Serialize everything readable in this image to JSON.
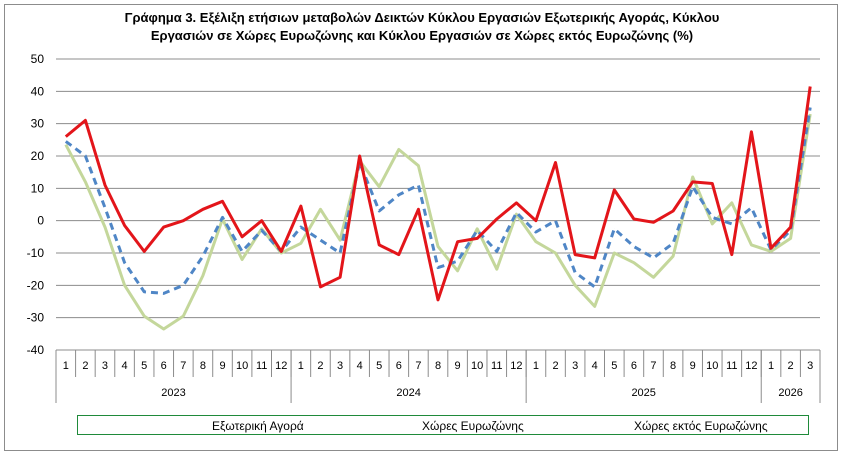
{
  "title_lines": [
    "Γράφημα 3. Εξέλιξη  ετήσιων μεταβολών Δεικτών Κύκλου Εργασιών Εξωτερικής Αγοράς,  Κύκλου",
    "Εργασιών σε Χώρες Ευρωζώνης και Κύκλου Εργασιών σε Χώρες εκτός Ευρωζώνης (%)"
  ],
  "colors": {
    "external": "#4f86c6",
    "eurozone": "#e3151a",
    "non_eurozone": "#c4d79b",
    "grid": "#8c8c8c",
    "legend_border": "#1f8a3a"
  },
  "legend": {
    "external": "Εξωτερική Αγορά",
    "eurozone": "Χώρες Ευρωζώνης",
    "non_eurozone": "Χώρες εκτός Ευρωζώνης"
  },
  "chart_data": {
    "type": "line",
    "title": "Γράφημα 3. Εξέλιξη  ετήσιων μεταβολών Δεικτών Κύκλου Εργασιών Εξωτερικής Αγοράς,  Κύκλου Εργασιών σε Χώρες Ευρωζώνης και Κύκλου Εργασιών σε Χώρες εκτός Ευρωζώνης (%)",
    "ylim": [
      -40,
      50
    ],
    "yticks": [
      "50",
      "40",
      "30",
      "20",
      "10",
      "0",
      "-10",
      "-20",
      "-30",
      "-40"
    ],
    "grid": true,
    "legend_position": "bottom",
    "categories": [
      "1",
      "2",
      "3",
      "4",
      "5",
      "6",
      "7",
      "8",
      "9",
      "10",
      "11",
      "12",
      "1",
      "2",
      "3",
      "4",
      "5",
      "6",
      "7",
      "8",
      "9",
      "10",
      "11",
      "12",
      "1",
      "2",
      "3",
      "4",
      "5",
      "6",
      "7",
      "8",
      "9",
      "10",
      "11",
      "12",
      "1",
      "2",
      "3"
    ],
    "year_groups": [
      {
        "label": "2023",
        "count": 12
      },
      {
        "label": "2024",
        "count": 12
      },
      {
        "label": "2025",
        "count": 12
      },
      {
        "label": "2026",
        "count": 3
      }
    ],
    "series": [
      {
        "name": "Εξωτερική Αγορά",
        "key": "external",
        "style": "dashed",
        "values": [
          24.5,
          20,
          4,
          -13,
          -22,
          -22.5,
          -20,
          -11,
          1,
          -9.5,
          -3,
          -9.5,
          -2,
          -6,
          -10,
          18,
          3,
          8,
          11,
          -14.5,
          -12.5,
          -3,
          -9.5,
          2.5,
          -3.5,
          0,
          -16,
          -20.5,
          -2.5,
          -8,
          -11.5,
          -7,
          10.5,
          1,
          -1,
          4,
          -9,
          -3,
          35
        ]
      },
      {
        "name": "Χώρες Ευρωζώνης",
        "key": "eurozone",
        "style": "solid",
        "values": [
          26,
          31,
          11,
          -1.5,
          -9.5,
          -2,
          0,
          3.5,
          6,
          -5,
          0,
          -9.5,
          4.5,
          -20.5,
          -17.5,
          20,
          -7.5,
          -10.5,
          3.5,
          -24.5,
          -6.5,
          -5.5,
          0.5,
          5.5,
          0,
          18,
          -10.5,
          -11.5,
          9.5,
          0.5,
          -0.5,
          3,
          12,
          11.5,
          -10.5,
          27.5,
          -8.5,
          -2,
          41.5
        ]
      },
      {
        "name": "Χώρες εκτός Ευρωζώνης",
        "key": "non_eurozone",
        "style": "solid",
        "values": [
          23.5,
          12,
          -2,
          -20,
          -29.5,
          -33.5,
          -29.5,
          -17,
          0.5,
          -12,
          -2.5,
          -10,
          -7,
          3.5,
          -6,
          18.5,
          10.5,
          22,
          17,
          -8,
          -15.5,
          -2.5,
          -15,
          2,
          -6.5,
          -10,
          -20,
          -26.5,
          -10,
          -13,
          -17.5,
          -11,
          13.5,
          -1,
          5.5,
          -7.5,
          -9.5,
          -5.5,
          33
        ]
      }
    ]
  }
}
